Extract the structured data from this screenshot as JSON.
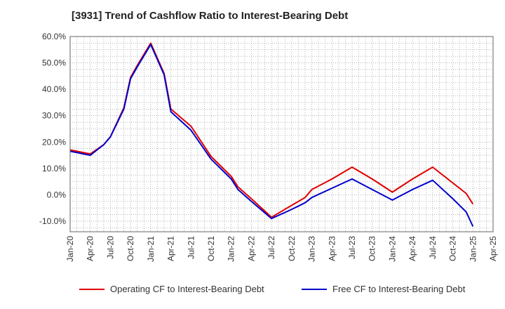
{
  "chart_data": {
    "type": "line",
    "title": "[3931]  Trend of Cashflow Ratio to Interest-Bearing Debt",
    "xlabel": "",
    "ylabel": "",
    "ylim": [
      -14,
      60
    ],
    "y_ticks": [
      "60.0%",
      "50.0%",
      "40.0%",
      "30.0%",
      "20.0%",
      "10.0%",
      "0.0%",
      "-10.0%"
    ],
    "y_tick_values": [
      60,
      50,
      40,
      30,
      20,
      10,
      0,
      -10
    ],
    "x_ticks": [
      "Jan-20",
      "Apr-20",
      "Jul-20",
      "Oct-20",
      "Jan-21",
      "Apr-21",
      "Jul-21",
      "Oct-21",
      "Jan-22",
      "Apr-22",
      "Jul-22",
      "Oct-22",
      "Jan-23",
      "Apr-23",
      "Jul-23",
      "Oct-23",
      "Jan-24",
      "Apr-24",
      "Jul-24",
      "Oct-24",
      "Jan-25",
      "Apr-25"
    ],
    "x_range_months": [
      0,
      63
    ],
    "grid": true,
    "legend_position": "bottom",
    "series": [
      {
        "name": "Operating CF to Interest-Bearing Debt",
        "color": "#e00000",
        "x": [
          "Jan-20",
          "Apr-20",
          "Jun-20",
          "Jul-20",
          "Sep-20",
          "Oct-20",
          "Nov-20",
          "Jan-21",
          "Mar-21",
          "Apr-21",
          "Jul-21",
          "Oct-21",
          "Jan-22",
          "Feb-22",
          "Apr-22",
          "Jul-22",
          "Oct-22",
          "Dec-22",
          "Jan-23",
          "Apr-23",
          "Jul-23",
          "Oct-23",
          "Jan-24",
          "Apr-24",
          "Jul-24",
          "Oct-24",
          "Dec-24",
          "Jan-25"
        ],
        "values": [
          17.0,
          15.5,
          19.0,
          22.0,
          33.0,
          44.5,
          49.0,
          57.5,
          46.0,
          32.5,
          26.0,
          14.5,
          7.0,
          3.0,
          -1.5,
          -8.5,
          -4.0,
          -1.0,
          2.0,
          6.0,
          10.5,
          6.0,
          1.0,
          6.0,
          10.5,
          4.5,
          0.5,
          -3.5
        ]
      },
      {
        "name": "Free CF to Interest-Bearing Debt",
        "color": "#0000cc",
        "x": [
          "Jan-20",
          "Apr-20",
          "Jun-20",
          "Jul-20",
          "Sep-20",
          "Oct-20",
          "Nov-20",
          "Jan-21",
          "Mar-21",
          "Apr-21",
          "Jul-21",
          "Oct-21",
          "Jan-22",
          "Feb-22",
          "Apr-22",
          "Jul-22",
          "Oct-22",
          "Dec-22",
          "Jan-23",
          "Apr-23",
          "Jul-23",
          "Oct-23",
          "Jan-24",
          "Apr-24",
          "Jul-24",
          "Oct-24",
          "Dec-24",
          "Jan-25"
        ],
        "values": [
          16.5,
          15.0,
          19.0,
          22.0,
          32.5,
          44.0,
          48.5,
          57.0,
          45.5,
          31.5,
          24.5,
          13.5,
          6.0,
          2.0,
          -2.5,
          -9.0,
          -5.5,
          -3.0,
          -1.0,
          2.5,
          6.0,
          2.0,
          -2.0,
          2.0,
          5.5,
          -1.5,
          -6.5,
          -12.0
        ]
      }
    ]
  }
}
